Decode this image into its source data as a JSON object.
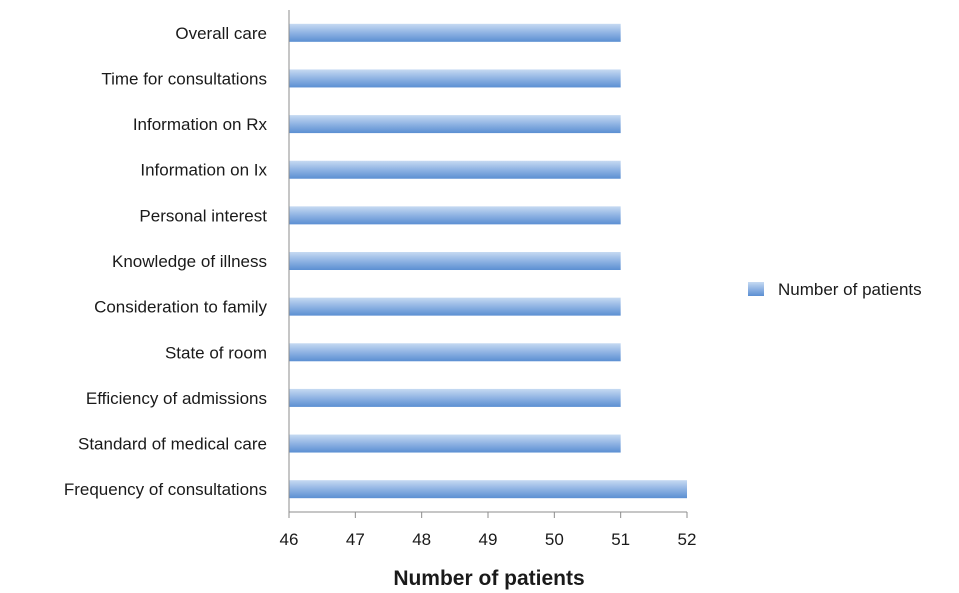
{
  "chart_data": {
    "type": "bar",
    "orientation": "horizontal",
    "categories": [
      "Overall care",
      "Time for consultations",
      "Information on Rx",
      "Information on Ix",
      "Personal interest",
      "Knowledge of illness",
      "Consideration to family",
      "State of room",
      "Efficiency of admissions",
      "Standard of medical care",
      "Frequency of consultations"
    ],
    "series": [
      {
        "name": "Number of patients",
        "values": [
          51,
          51,
          51,
          51,
          51,
          51,
          51,
          51,
          51,
          51,
          52
        ]
      }
    ],
    "x_ticks": [
      "46",
      "47",
      "48",
      "49",
      "50",
      "51",
      "52"
    ],
    "xlim": [
      46,
      52
    ],
    "xlabel": "Number of patients",
    "ylabel": "",
    "title": "",
    "grid": false,
    "legend_position": "right",
    "colors": {
      "bar_light": "#c6daf2",
      "bar_mid": "#8fb3e3",
      "bar_dark": "#5b8fd2",
      "axis": "#8c8c8c"
    }
  }
}
